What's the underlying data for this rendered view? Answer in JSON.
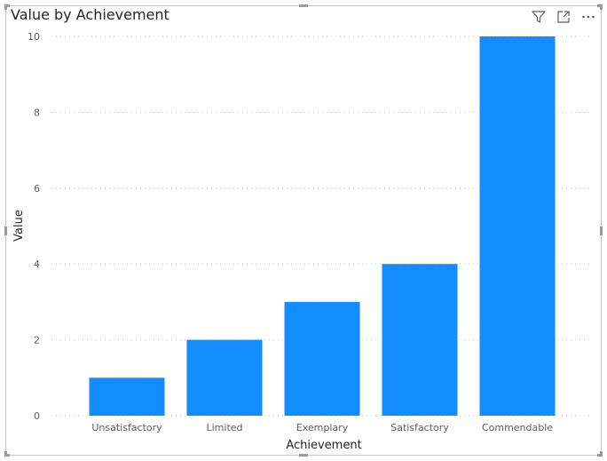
{
  "chart_data": {
    "type": "bar",
    "title": "Value by Achievement",
    "xlabel": "Achievement",
    "ylabel": "Value",
    "categories": [
      "Unsatisfactory",
      "Limited",
      "Exemplary",
      "Satisfactory",
      "Commendable"
    ],
    "values": [
      1,
      2,
      3,
      4,
      10
    ],
    "ylim": [
      0,
      10
    ],
    "yticks": [
      0,
      2,
      4,
      6,
      8,
      10
    ],
    "grid": true,
    "bar_color": "#118DFF"
  },
  "toolbar": {
    "icons": [
      "filter-icon",
      "focus-mode-icon",
      "more-options-icon"
    ]
  }
}
